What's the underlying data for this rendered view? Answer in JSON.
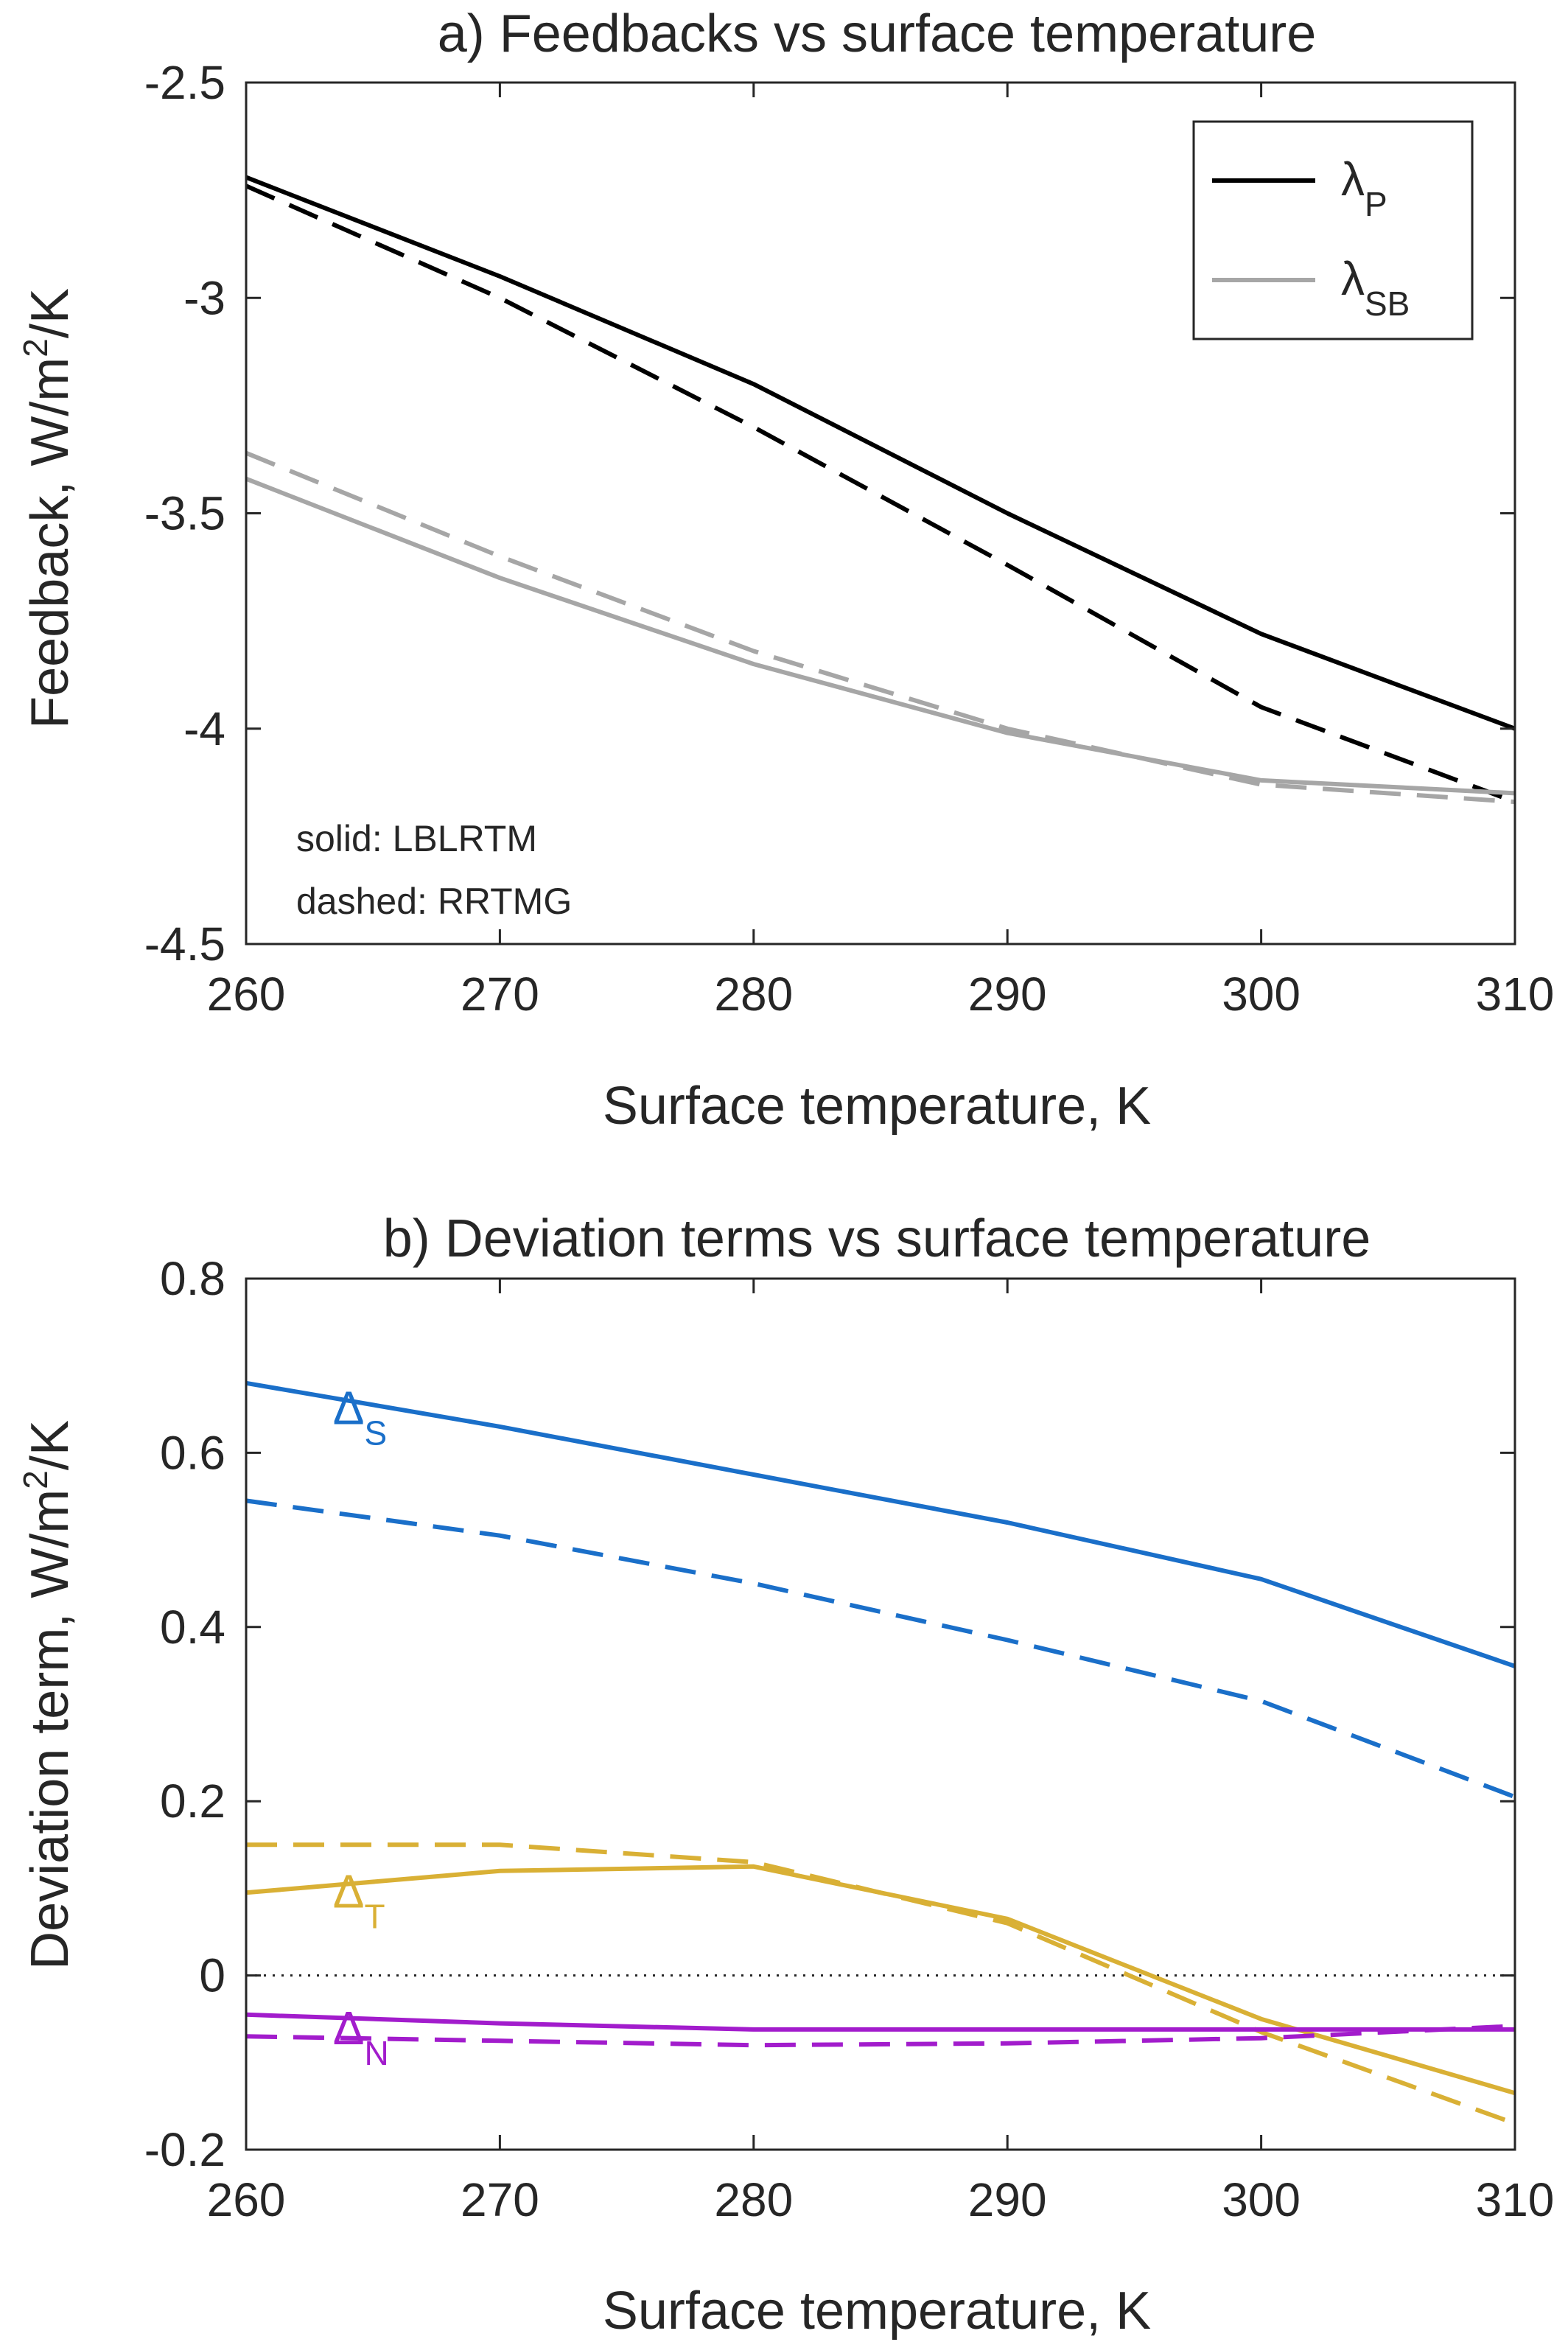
{
  "chart_data": [
    {
      "type": "line",
      "title": "a) Feedbacks vs surface temperature",
      "xlabel": "Surface temperature, K",
      "ylabel": "Feedback, W/m",
      "ylabel_sup": "2",
      "ylabel_end": "/K",
      "xlim": [
        260,
        310
      ],
      "ylim": [
        -4.5,
        -2.5
      ],
      "xticks": [
        260,
        270,
        280,
        290,
        300,
        310
      ],
      "xtick_labels": [
        "260",
        "270",
        "280",
        "290",
        "300",
        "310"
      ],
      "yticks": [
        -2.5,
        -3,
        -3.5,
        -4,
        -4.5
      ],
      "ytick_labels": [
        "-2.5",
        "-3",
        "-3.5",
        "-4",
        "-4.5"
      ],
      "grid": false,
      "legend_position": "top-right",
      "legend": [
        {
          "sym": "λ",
          "sub": "P",
          "color": "#000000"
        },
        {
          "sym": "λ",
          "sub": "SB",
          "color": "#a6a6a6"
        }
      ],
      "notes": [
        "solid: LBLRTM",
        "dashed: RRTMG"
      ],
      "x": [
        260,
        270,
        280,
        290,
        300,
        310
      ],
      "series": [
        {
          "color": "#000000",
          "dash": "solid",
          "values": [
            -2.72,
            -2.95,
            -3.2,
            -3.5,
            -3.78,
            -4.0
          ]
        },
        {
          "color": "#000000",
          "dash": "dashed",
          "values": [
            -2.74,
            -3.0,
            -3.3,
            -3.62,
            -3.95,
            -4.17
          ]
        },
        {
          "color": "#a6a6a6",
          "dash": "solid",
          "values": [
            -3.42,
            -3.65,
            -3.85,
            -4.01,
            -4.12,
            -4.15
          ]
        },
        {
          "color": "#a6a6a6",
          "dash": "dashed",
          "values": [
            -3.36,
            -3.6,
            -3.82,
            -4.0,
            -4.13,
            -4.17
          ]
        }
      ]
    },
    {
      "type": "line",
      "title": "b) Deviation terms vs surface temperature",
      "xlabel": "Surface temperature, K",
      "ylabel": "Deviation term, W/m",
      "ylabel_sup": "2",
      "ylabel_end": "/K",
      "xlim": [
        260,
        310
      ],
      "ylim": [
        -0.2,
        0.8
      ],
      "xticks": [
        260,
        270,
        280,
        290,
        300,
        310
      ],
      "xtick_labels": [
        "260",
        "270",
        "280",
        "290",
        "300",
        "310"
      ],
      "yticks": [
        0.8,
        0.6,
        0.4,
        0.2,
        0,
        -0.2
      ],
      "ytick_labels": [
        "0.8",
        "0.6",
        "0.4",
        "0.2",
        "0",
        "-0.2"
      ],
      "grid": false,
      "zero_line": true,
      "annotations": [
        {
          "sym": "Δ",
          "sub": "S",
          "color": "#1a6fc9",
          "x": 264.0,
          "y": 0.65
        },
        {
          "sym": "Δ",
          "sub": "T",
          "color": "#d9b035",
          "x": 264.0,
          "y": 0.095
        },
        {
          "sym": "Δ",
          "sub": "N",
          "color": "#a21ccc",
          "x": 264.0,
          "y": -0.062
        }
      ],
      "x": [
        260,
        270,
        280,
        290,
        300,
        310
      ],
      "series": [
        {
          "color": "#1a6fc9",
          "dash": "solid",
          "values": [
            0.68,
            0.63,
            0.575,
            0.52,
            0.455,
            0.355
          ]
        },
        {
          "color": "#1a6fc9",
          "dash": "dashed",
          "values": [
            0.545,
            0.505,
            0.45,
            0.385,
            0.315,
            0.205
          ]
        },
        {
          "color": "#d9b035",
          "dash": "solid",
          "values": [
            0.095,
            0.12,
            0.125,
            0.065,
            -0.05,
            -0.135
          ]
        },
        {
          "color": "#d9b035",
          "dash": "dashed",
          "values": [
            0.15,
            0.15,
            0.13,
            0.06,
            -0.065,
            -0.17
          ]
        },
        {
          "color": "#a21ccc",
          "dash": "solid",
          "values": [
            -0.045,
            -0.055,
            -0.062,
            -0.062,
            -0.062,
            -0.062
          ]
        },
        {
          "color": "#a21ccc",
          "dash": "dashed",
          "values": [
            -0.07,
            -0.075,
            -0.08,
            -0.078,
            -0.072,
            -0.058
          ]
        }
      ]
    }
  ]
}
